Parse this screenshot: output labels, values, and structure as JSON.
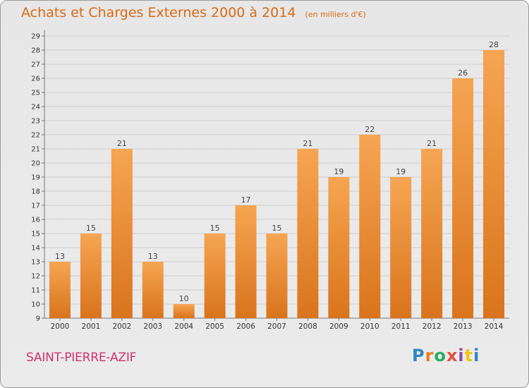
{
  "header": {
    "title": "Achats et Charges Externes 2000 à 2014",
    "unit": "(en milliers d'€)"
  },
  "footer": {
    "commune": "SAINT-PIERRE-AZIF",
    "logo_text": "Proxiti",
    "logo_letters": [
      {
        "char": "P",
        "color": "#2e86c1"
      },
      {
        "char": "r",
        "color": "#e67e22"
      },
      {
        "char": "o",
        "color": "#27ae60"
      },
      {
        "char": "x",
        "color": "#e74c3c"
      },
      {
        "char": "i",
        "color": "#8e44ad"
      },
      {
        "char": "t",
        "color": "#f1c40f"
      },
      {
        "char": "i",
        "color": "#2e86c1"
      }
    ]
  },
  "colors": {
    "bar_top": "#f6a552",
    "bar_bottom": "#d9741c",
    "title": "#d86a14",
    "commune": "#d0306d",
    "grid": "#cfcfcf"
  },
  "chart_data": {
    "type": "bar",
    "title": "Achats et Charges Externes 2000 à 2014",
    "subtitle": "(en milliers d'€)",
    "categories": [
      "2000",
      "2001",
      "2002",
      "2003",
      "2004",
      "2005",
      "2006",
      "2007",
      "2008",
      "2009",
      "2010",
      "2011",
      "2012",
      "2013",
      "2014"
    ],
    "values": [
      13,
      15,
      21,
      13,
      10,
      15,
      17,
      15,
      21,
      19,
      22,
      19,
      21,
      26,
      28
    ],
    "ylim": [
      9,
      29
    ],
    "yticks": [
      9,
      10,
      11,
      12,
      13,
      14,
      15,
      16,
      17,
      18,
      19,
      20,
      21,
      22,
      23,
      24,
      25,
      26,
      27,
      28,
      29
    ],
    "grid": true,
    "data_labels": true
  }
}
